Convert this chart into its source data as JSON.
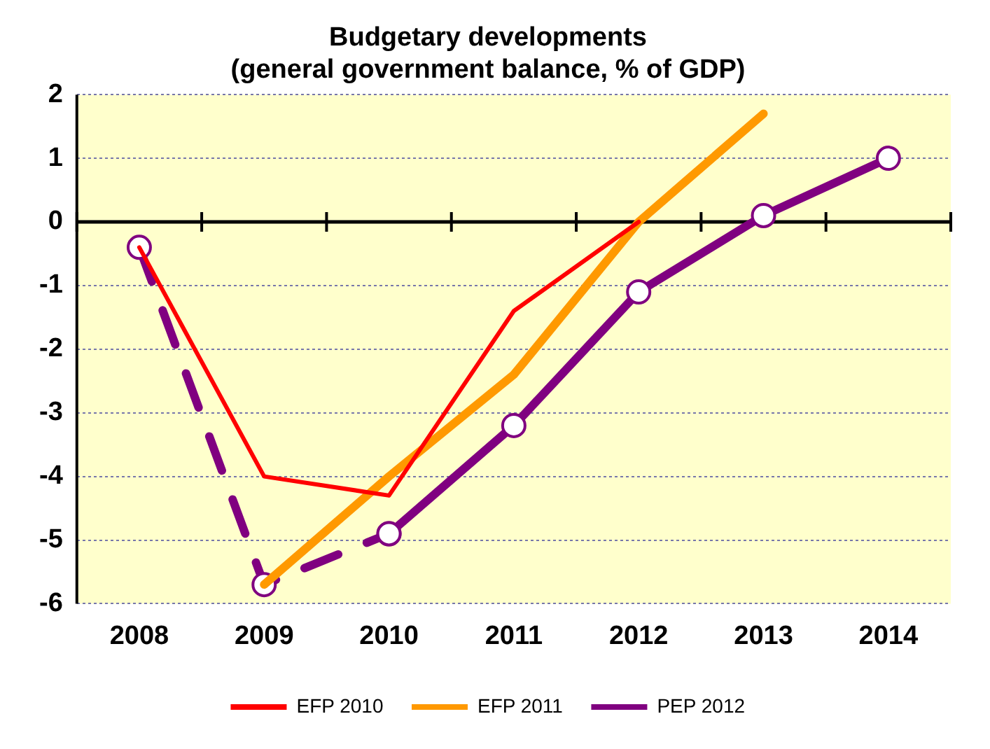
{
  "chart_data": {
    "type": "line",
    "title": "Budgetary developments\n(general government balance, % of GDP)",
    "categories": [
      "2008",
      "2009",
      "2010",
      "2011",
      "2012",
      "2013",
      "2014"
    ],
    "series": [
      {
        "name": "EFP 2010",
        "color": "#ff0000",
        "values": [
          -0.4,
          -4.0,
          -4.3,
          -1.4,
          0.0,
          null,
          null
        ],
        "marker": "none",
        "line_style": "solid"
      },
      {
        "name": "EFP 2011",
        "color": "#ff9900",
        "values": [
          null,
          -5.7,
          -4.0,
          -2.4,
          0.0,
          1.7,
          null
        ],
        "marker": "none",
        "line_style": "solid"
      },
      {
        "name": "PEP 2012",
        "color": "#800080",
        "values": [
          null,
          null,
          -4.9,
          -3.2,
          -1.1,
          0.1,
          1.0
        ],
        "marker": "circle",
        "line_style": "solid"
      },
      {
        "color": "#800080",
        "values": [
          -0.4,
          -5.7,
          -4.9,
          null,
          null,
          null,
          null
        ],
        "marker": "circle",
        "line_style": "dashed"
      }
    ],
    "ylim": [
      -6,
      2
    ],
    "yticks": [
      -6,
      -5,
      -4,
      -3,
      -2,
      -1,
      0,
      1,
      2
    ],
    "grid": "y",
    "legend": "bottom"
  }
}
